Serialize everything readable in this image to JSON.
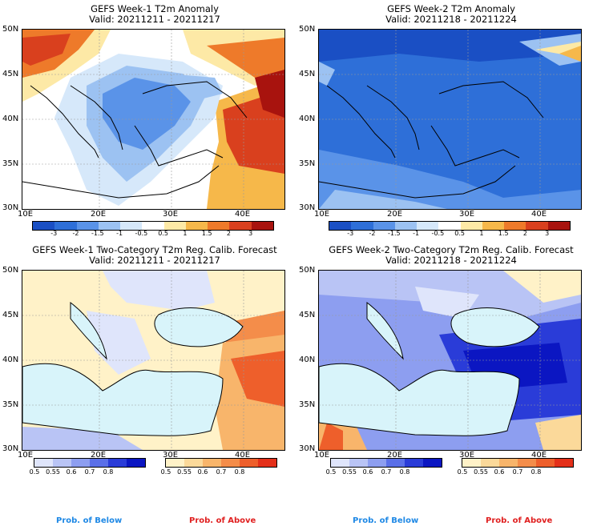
{
  "panels": [
    {
      "title": "GEFS Week-1 T2m Anomaly",
      "valid": "Valid: 20211211 - 20211217"
    },
    {
      "title": "GEFS Week-2 T2m Anomaly",
      "valid": "Valid: 20211218 - 20211224"
    },
    {
      "title": "GEFS Week-1 Two-Category T2m Reg. Calib. Forecast",
      "valid": "Valid: 20211211 - 20211217"
    },
    {
      "title": "GEFS Week-2 Two-Category T2m Reg. Calib. Forecast",
      "valid": "Valid: 20211218 - 20211224"
    }
  ],
  "axes": {
    "lat_ticks": [
      "50N",
      "45N",
      "40N",
      "35N",
      "30N"
    ],
    "lon_ticks": [
      "10E",
      "20E",
      "30E",
      "40E"
    ]
  },
  "anomaly_colorbar": {
    "labels": [
      "-3",
      "-2",
      "-1.5",
      "-1",
      "-0.5",
      "0.5",
      "1",
      "1.5",
      "2",
      "3"
    ],
    "colors": [
      "#1a4fc4",
      "#2e6fd8",
      "#5a93e8",
      "#9cc2f2",
      "#d6e8fa",
      "#ffffff",
      "#fde9a6",
      "#f6b84a",
      "#ee7a2a",
      "#d9401e",
      "#a8130e"
    ]
  },
  "below_colorbar": {
    "labels": [
      "0.5",
      "0.55",
      "0.6",
      "0.7",
      "0.8"
    ],
    "colors": [
      "#dfe5fb",
      "#b9c4f5",
      "#8d9ef0",
      "#5a6fe8",
      "#2a3cd8",
      "#0b16c2"
    ]
  },
  "above_colorbar": {
    "labels": [
      "0.5",
      "0.55",
      "0.6",
      "0.7",
      "0.8"
    ],
    "colors": [
      "#fff2c8",
      "#fbd99a",
      "#f8b56b",
      "#f48d4a",
      "#ee5f2b",
      "#e4301a"
    ]
  },
  "legend": {
    "below": "Prob. of Below",
    "above": "Prob. of Above"
  },
  "colors": {
    "below_text": "#1e88e5",
    "above_text": "#e02020",
    "sea_prob": "#d8f4fa"
  }
}
